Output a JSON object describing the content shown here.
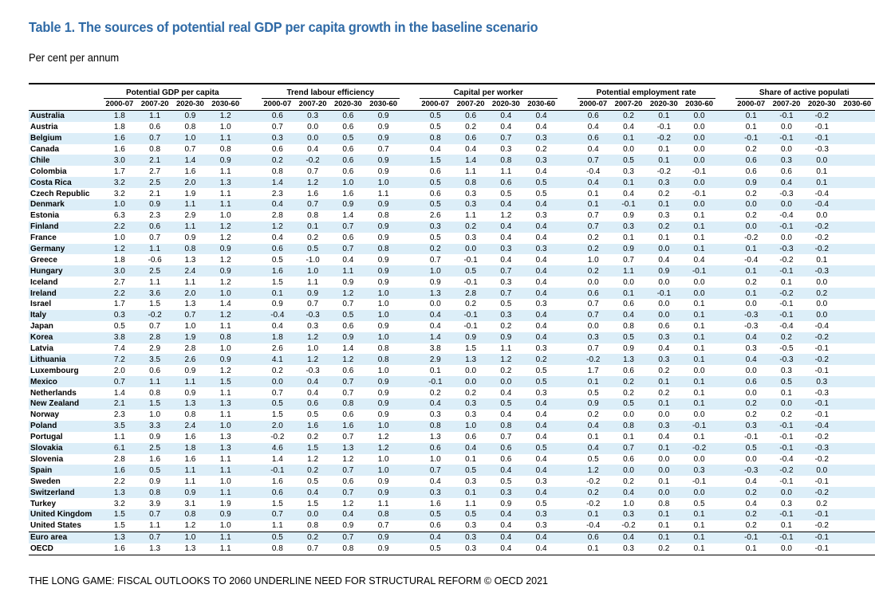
{
  "title": "Table 1. The sources of potential real GDP per capita growth in the baseline scenario",
  "subtitle": "Per cent per annum",
  "footer": "THE LONG GAME: FISCAL OUTLOOKS TO 2060 UNDERLINE NEED FOR STRUCTURAL REFORM © OECD 2021",
  "groups": [
    "Potential GDP per capita",
    "Trend labour efficiency",
    "Capital per worker",
    "Potential employment rate",
    "Share of active populati"
  ],
  "periods": [
    "2000-07",
    "2007-20",
    "2020-30",
    "2030-60"
  ],
  "rows": [
    {
      "country": "Australia",
      "values": [
        "1.8",
        "1.1",
        "0.9",
        "1.2",
        "0.6",
        "0.3",
        "0.6",
        "0.9",
        "0.5",
        "0.6",
        "0.4",
        "0.4",
        "0.6",
        "0.2",
        "0.1",
        "0.0",
        "0.1",
        "-0.1",
        "-0.2",
        ""
      ]
    },
    {
      "country": "Austria",
      "values": [
        "1.8",
        "0.6",
        "0.8",
        "1.0",
        "0.7",
        "0.0",
        "0.6",
        "0.9",
        "0.5",
        "0.2",
        "0.4",
        "0.4",
        "0.4",
        "0.4",
        "-0.1",
        "0.0",
        "0.1",
        "0.0",
        "-0.1",
        ""
      ]
    },
    {
      "country": "Belgium",
      "values": [
        "1.6",
        "0.7",
        "1.0",
        "1.1",
        "0.3",
        "0.0",
        "0.5",
        "0.9",
        "0.8",
        "0.6",
        "0.7",
        "0.3",
        "0.6",
        "0.1",
        "-0.2",
        "0.0",
        "-0.1",
        "-0.1",
        "-0.1",
        ""
      ]
    },
    {
      "country": "Canada",
      "values": [
        "1.6",
        "0.8",
        "0.7",
        "0.8",
        "0.6",
        "0.4",
        "0.6",
        "0.7",
        "0.4",
        "0.4",
        "0.3",
        "0.2",
        "0.4",
        "0.0",
        "0.1",
        "0.0",
        "0.2",
        "0.0",
        "-0.3",
        ""
      ]
    },
    {
      "country": "Chile",
      "values": [
        "3.0",
        "2.1",
        "1.4",
        "0.9",
        "0.2",
        "-0.2",
        "0.6",
        "0.9",
        "1.5",
        "1.4",
        "0.8",
        "0.3",
        "0.7",
        "0.5",
        "0.1",
        "0.0",
        "0.6",
        "0.3",
        "0.0",
        ""
      ]
    },
    {
      "country": "Colombia",
      "values": [
        "1.7",
        "2.7",
        "1.6",
        "1.1",
        "0.8",
        "0.7",
        "0.6",
        "0.9",
        "0.6",
        "1.1",
        "1.1",
        "0.4",
        "-0.4",
        "0.3",
        "-0.2",
        "-0.1",
        "0.6",
        "0.6",
        "0.1",
        ""
      ]
    },
    {
      "country": "Costa Rica",
      "values": [
        "3.2",
        "2.5",
        "2.0",
        "1.3",
        "1.4",
        "1.2",
        "1.0",
        "1.0",
        "0.5",
        "0.8",
        "0.6",
        "0.5",
        "0.4",
        "0.1",
        "0.3",
        "0.0",
        "0.9",
        "0.4",
        "0.1",
        ""
      ]
    },
    {
      "country": "Czech Republic",
      "values": [
        "3.2",
        "2.1",
        "1.9",
        "1.1",
        "2.3",
        "1.6",
        "1.6",
        "1.1",
        "0.6",
        "0.3",
        "0.5",
        "0.5",
        "0.1",
        "0.4",
        "0.2",
        "-0.1",
        "0.2",
        "-0.3",
        "-0.4",
        ""
      ]
    },
    {
      "country": "Denmark",
      "values": [
        "1.0",
        "0.9",
        "1.1",
        "1.1",
        "0.4",
        "0.7",
        "0.9",
        "0.9",
        "0.5",
        "0.3",
        "0.4",
        "0.4",
        "0.1",
        "-0.1",
        "0.1",
        "0.0",
        "0.0",
        "0.0",
        "-0.4",
        ""
      ]
    },
    {
      "country": "Estonia",
      "values": [
        "6.3",
        "2.3",
        "2.9",
        "1.0",
        "2.8",
        "0.8",
        "1.4",
        "0.8",
        "2.6",
        "1.1",
        "1.2",
        "0.3",
        "0.7",
        "0.9",
        "0.3",
        "0.1",
        "0.2",
        "-0.4",
        "0.0",
        ""
      ]
    },
    {
      "country": "Finland",
      "values": [
        "2.2",
        "0.6",
        "1.1",
        "1.2",
        "1.2",
        "0.1",
        "0.7",
        "0.9",
        "0.3",
        "0.2",
        "0.4",
        "0.4",
        "0.7",
        "0.3",
        "0.2",
        "0.1",
        "0.0",
        "-0.1",
        "-0.2",
        ""
      ]
    },
    {
      "country": "France",
      "values": [
        "1.0",
        "0.7",
        "0.9",
        "1.2",
        "0.4",
        "0.2",
        "0.6",
        "0.9",
        "0.5",
        "0.3",
        "0.4",
        "0.4",
        "0.2",
        "0.1",
        "0.1",
        "0.1",
        "-0.2",
        "0.0",
        "-0.2",
        ""
      ]
    },
    {
      "country": "Germany",
      "values": [
        "1.2",
        "1.1",
        "0.8",
        "0.9",
        "0.6",
        "0.5",
        "0.7",
        "0.8",
        "0.2",
        "0.0",
        "0.3",
        "0.3",
        "0.2",
        "0.9",
        "0.0",
        "0.1",
        "0.1",
        "-0.3",
        "-0.2",
        ""
      ]
    },
    {
      "country": "Greece",
      "values": [
        "1.8",
        "-0.6",
        "1.3",
        "1.2",
        "0.5",
        "-1.0",
        "0.4",
        "0.9",
        "0.7",
        "-0.1",
        "0.4",
        "0.4",
        "1.0",
        "0.7",
        "0.4",
        "0.4",
        "-0.4",
        "-0.2",
        "0.1",
        ""
      ]
    },
    {
      "country": "Hungary",
      "values": [
        "3.0",
        "2.5",
        "2.4",
        "0.9",
        "1.6",
        "1.0",
        "1.1",
        "0.9",
        "1.0",
        "0.5",
        "0.7",
        "0.4",
        "0.2",
        "1.1",
        "0.9",
        "-0.1",
        "0.1",
        "-0.1",
        "-0.3",
        ""
      ]
    },
    {
      "country": "Iceland",
      "values": [
        "2.7",
        "1.1",
        "1.1",
        "1.2",
        "1.5",
        "1.1",
        "0.9",
        "0.9",
        "0.9",
        "-0.1",
        "0.3",
        "0.4",
        "0.0",
        "0.0",
        "0.0",
        "0.0",
        "0.2",
        "0.1",
        "0.0",
        ""
      ]
    },
    {
      "country": "Ireland",
      "values": [
        "2.2",
        "3.6",
        "2.0",
        "1.0",
        "0.1",
        "0.9",
        "1.2",
        "1.0",
        "1.3",
        "2.8",
        "0.7",
        "0.4",
        "0.6",
        "0.1",
        "-0.1",
        "0.0",
        "0.1",
        "-0.2",
        "0.2",
        ""
      ]
    },
    {
      "country": "Israel",
      "values": [
        "1.7",
        "1.5",
        "1.3",
        "1.4",
        "0.9",
        "0.7",
        "0.7",
        "1.0",
        "0.0",
        "0.2",
        "0.5",
        "0.3",
        "0.7",
        "0.6",
        "0.0",
        "0.1",
        "0.0",
        "-0.1",
        "0.0",
        ""
      ]
    },
    {
      "country": "Italy",
      "values": [
        "0.3",
        "-0.2",
        "0.7",
        "1.2",
        "-0.4",
        "-0.3",
        "0.5",
        "1.0",
        "0.4",
        "-0.1",
        "0.3",
        "0.4",
        "0.7",
        "0.4",
        "0.0",
        "0.1",
        "-0.3",
        "-0.1",
        "0.0",
        ""
      ]
    },
    {
      "country": "Japan",
      "values": [
        "0.5",
        "0.7",
        "1.0",
        "1.1",
        "0.4",
        "0.3",
        "0.6",
        "0.9",
        "0.4",
        "-0.1",
        "0.2",
        "0.4",
        "0.0",
        "0.8",
        "0.6",
        "0.1",
        "-0.3",
        "-0.4",
        "-0.4",
        ""
      ]
    },
    {
      "country": "Korea",
      "values": [
        "3.8",
        "2.8",
        "1.9",
        "0.8",
        "1.8",
        "1.2",
        "0.9",
        "1.0",
        "1.4",
        "0.9",
        "0.9",
        "0.4",
        "0.3",
        "0.5",
        "0.3",
        "0.1",
        "0.4",
        "0.2",
        "-0.2",
        ""
      ]
    },
    {
      "country": "Latvia",
      "values": [
        "7.4",
        "2.9",
        "2.8",
        "1.0",
        "2.6",
        "1.0",
        "1.4",
        "0.8",
        "3.8",
        "1.5",
        "1.1",
        "0.3",
        "0.7",
        "0.9",
        "0.4",
        "0.1",
        "0.3",
        "-0.5",
        "-0.1",
        ""
      ]
    },
    {
      "country": "Lithuania",
      "values": [
        "7.2",
        "3.5",
        "2.6",
        "0.9",
        "4.1",
        "1.2",
        "1.2",
        "0.8",
        "2.9",
        "1.3",
        "1.2",
        "0.2",
        "-0.2",
        "1.3",
        "0.3",
        "0.1",
        "0.4",
        "-0.3",
        "-0.2",
        ""
      ]
    },
    {
      "country": "Luxembourg",
      "values": [
        "2.0",
        "0.6",
        "0.9",
        "1.2",
        "0.2",
        "-0.3",
        "0.6",
        "1.0",
        "0.1",
        "0.0",
        "0.2",
        "0.5",
        "1.7",
        "0.6",
        "0.2",
        "0.0",
        "0.0",
        "0.3",
        "-0.1",
        ""
      ]
    },
    {
      "country": "Mexico",
      "values": [
        "0.7",
        "1.1",
        "1.1",
        "1.5",
        "0.0",
        "0.4",
        "0.7",
        "0.9",
        "-0.1",
        "0.0",
        "0.0",
        "0.5",
        "0.1",
        "0.2",
        "0.1",
        "0.1",
        "0.6",
        "0.5",
        "0.3",
        ""
      ]
    },
    {
      "country": "Netherlands",
      "values": [
        "1.4",
        "0.8",
        "0.9",
        "1.1",
        "0.7",
        "0.4",
        "0.7",
        "0.9",
        "0.2",
        "0.2",
        "0.4",
        "0.3",
        "0.5",
        "0.2",
        "0.2",
        "0.1",
        "0.0",
        "0.1",
        "-0.3",
        ""
      ]
    },
    {
      "country": "New Zealand",
      "values": [
        "2.1",
        "1.5",
        "1.3",
        "1.3",
        "0.5",
        "0.6",
        "0.8",
        "0.9",
        "0.4",
        "0.3",
        "0.5",
        "0.4",
        "0.9",
        "0.5",
        "0.1",
        "0.1",
        "0.2",
        "0.0",
        "-0.1",
        ""
      ]
    },
    {
      "country": "Norway",
      "values": [
        "2.3",
        "1.0",
        "0.8",
        "1.1",
        "1.5",
        "0.5",
        "0.6",
        "0.9",
        "0.3",
        "0.3",
        "0.4",
        "0.4",
        "0.2",
        "0.0",
        "0.0",
        "0.0",
        "0.2",
        "0.2",
        "-0.1",
        ""
      ]
    },
    {
      "country": "Poland",
      "values": [
        "3.5",
        "3.3",
        "2.4",
        "1.0",
        "2.0",
        "1.6",
        "1.6",
        "1.0",
        "0.8",
        "1.0",
        "0.8",
        "0.4",
        "0.4",
        "0.8",
        "0.3",
        "-0.1",
        "0.3",
        "-0.1",
        "-0.4",
        ""
      ]
    },
    {
      "country": "Portugal",
      "values": [
        "1.1",
        "0.9",
        "1.6",
        "1.3",
        "-0.2",
        "0.2",
        "0.7",
        "1.2",
        "1.3",
        "0.6",
        "0.7",
        "0.4",
        "0.1",
        "0.1",
        "0.4",
        "0.1",
        "-0.1",
        "-0.1",
        "-0.2",
        ""
      ]
    },
    {
      "country": "Slovakia",
      "values": [
        "6.1",
        "2.5",
        "1.8",
        "1.3",
        "4.6",
        "1.5",
        "1.3",
        "1.2",
        "0.6",
        "0.4",
        "0.6",
        "0.5",
        "0.4",
        "0.7",
        "0.1",
        "-0.2",
        "0.5",
        "-0.1",
        "-0.3",
        ""
      ]
    },
    {
      "country": "Slovenia",
      "values": [
        "2.8",
        "1.6",
        "1.6",
        "1.1",
        "1.4",
        "1.2",
        "1.2",
        "1.0",
        "1.0",
        "0.1",
        "0.6",
        "0.4",
        "0.5",
        "0.6",
        "0.0",
        "0.0",
        "0.0",
        "-0.4",
        "-0.2",
        ""
      ]
    },
    {
      "country": "Spain",
      "values": [
        "1.6",
        "0.5",
        "1.1",
        "1.1",
        "-0.1",
        "0.2",
        "0.7",
        "1.0",
        "0.7",
        "0.5",
        "0.4",
        "0.4",
        "1.2",
        "0.0",
        "0.0",
        "0.3",
        "-0.3",
        "-0.2",
        "0.0",
        ""
      ]
    },
    {
      "country": "Sweden",
      "values": [
        "2.2",
        "0.9",
        "1.1",
        "1.0",
        "1.6",
        "0.5",
        "0.6",
        "0.9",
        "0.4",
        "0.3",
        "0.5",
        "0.3",
        "-0.2",
        "0.2",
        "0.1",
        "-0.1",
        "0.4",
        "-0.1",
        "-0.1",
        ""
      ]
    },
    {
      "country": "Switzerland",
      "values": [
        "1.3",
        "0.8",
        "0.9",
        "1.1",
        "0.6",
        "0.4",
        "0.7",
        "0.9",
        "0.3",
        "0.1",
        "0.3",
        "0.4",
        "0.2",
        "0.4",
        "0.0",
        "0.0",
        "0.2",
        "0.0",
        "-0.2",
        ""
      ]
    },
    {
      "country": "Turkey",
      "values": [
        "3.2",
        "3.9",
        "3.1",
        "1.9",
        "1.5",
        "1.5",
        "1.2",
        "1.1",
        "1.6",
        "1.1",
        "0.9",
        "0.5",
        "-0.2",
        "1.0",
        "0.8",
        "0.5",
        "0.4",
        "0.3",
        "0.2",
        ""
      ]
    },
    {
      "country": "United Kingdom",
      "values": [
        "1.5",
        "0.7",
        "0.8",
        "0.9",
        "0.7",
        "0.0",
        "0.4",
        "0.8",
        "0.5",
        "0.5",
        "0.4",
        "0.3",
        "0.1",
        "0.3",
        "0.1",
        "0.1",
        "0.2",
        "-0.1",
        "-0.1",
        ""
      ]
    },
    {
      "country": "United States",
      "values": [
        "1.5",
        "1.1",
        "1.2",
        "1.0",
        "1.1",
        "0.8",
        "0.9",
        "0.7",
        "0.6",
        "0.3",
        "0.4",
        "0.3",
        "-0.4",
        "-0.2",
        "0.1",
        "0.1",
        "0.2",
        "0.1",
        "-0.2",
        ""
      ]
    },
    {
      "country": "Euro area",
      "values": [
        "1.3",
        "0.7",
        "1.0",
        "1.1",
        "0.5",
        "0.2",
        "0.7",
        "0.9",
        "0.4",
        "0.3",
        "0.4",
        "0.4",
        "0.6",
        "0.4",
        "0.1",
        "0.1",
        "-0.1",
        "-0.1",
        "-0.1",
        ""
      ]
    },
    {
      "country": "OECD",
      "values": [
        "1.6",
        "1.3",
        "1.3",
        "1.1",
        "0.8",
        "0.7",
        "0.8",
        "0.9",
        "0.5",
        "0.3",
        "0.4",
        "0.4",
        "0.1",
        "0.3",
        "0.2",
        "0.1",
        "0.1",
        "0.0",
        "-0.1",
        ""
      ]
    }
  ]
}
